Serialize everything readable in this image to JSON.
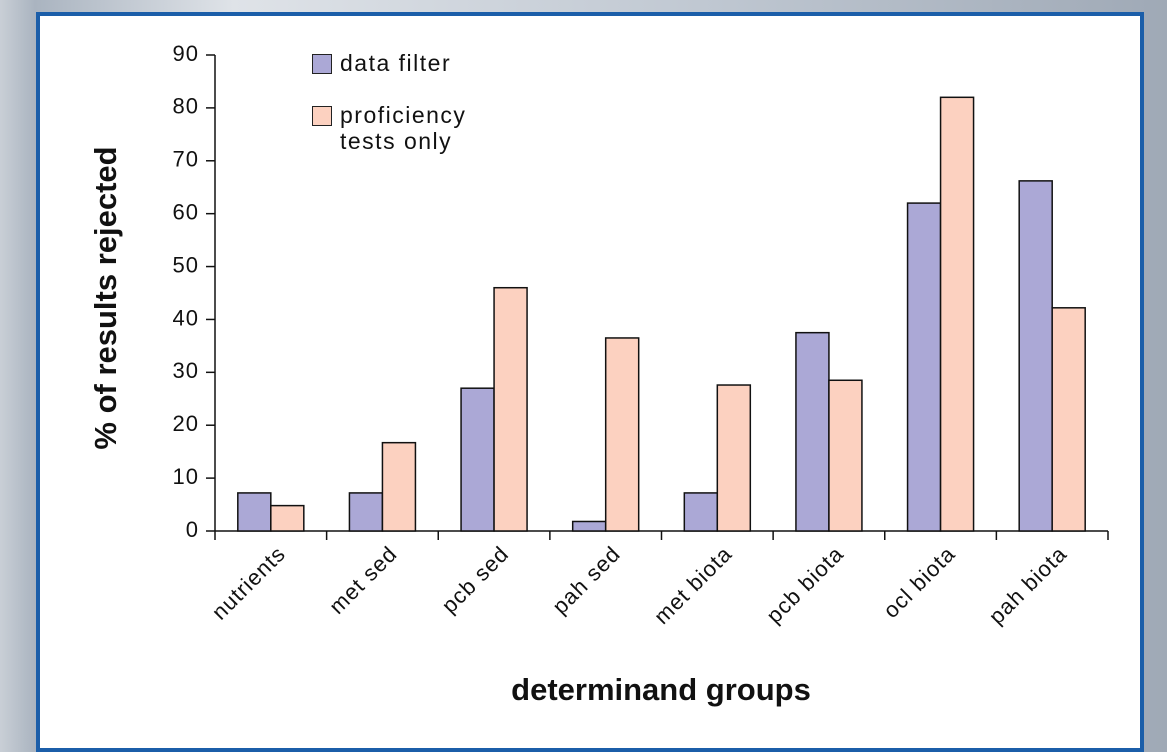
{
  "chart_data": {
    "type": "bar",
    "xlabel": "determinand groups",
    "ylabel": "% of results rejected",
    "categories": [
      "nutrients",
      "met sed",
      "pcb sed",
      "pah sed",
      "met biota",
      "pcb biota",
      "ocl biota",
      "pah biota"
    ],
    "series": [
      {
        "name": "data filter",
        "color": "#aba8d6",
        "values": [
          7.2,
          7.2,
          27,
          1.8,
          7.2,
          37.5,
          62,
          66.2
        ]
      },
      {
        "name": "proficiency tests only",
        "color": "#fcd1c0",
        "values": [
          4.8,
          16.7,
          46,
          36.5,
          27.6,
          28.5,
          82,
          42.2
        ]
      }
    ],
    "ylim": [
      0,
      90
    ],
    "yticks": [
      0,
      10,
      20,
      30,
      40,
      50,
      60,
      70,
      80,
      90
    ]
  }
}
